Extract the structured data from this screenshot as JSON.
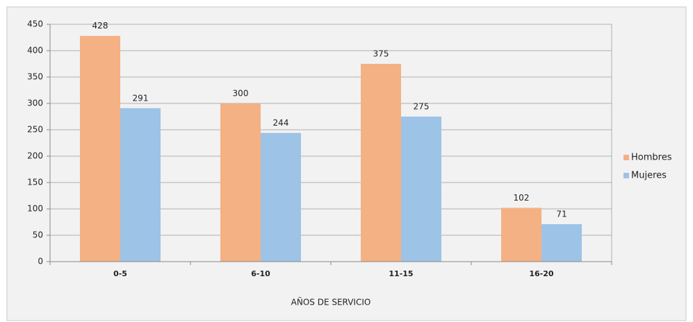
{
  "chart_data": {
    "type": "bar",
    "categories": [
      "0-5",
      "6-10",
      "11-15",
      "16-20"
    ],
    "series": [
      {
        "name": "Hombres",
        "color": "#f4b183",
        "values": [
          428,
          300,
          375,
          102
        ]
      },
      {
        "name": "Mujeres",
        "color": "#9dc3e6",
        "values": [
          291,
          244,
          275,
          71
        ]
      }
    ],
    "xlabel": "AÑOS DE SERVICIO",
    "ylim": [
      0,
      450
    ],
    "yticks": [
      0,
      50,
      100,
      150,
      200,
      250,
      300,
      350,
      400,
      450
    ],
    "grid": true,
    "legend": "right"
  }
}
